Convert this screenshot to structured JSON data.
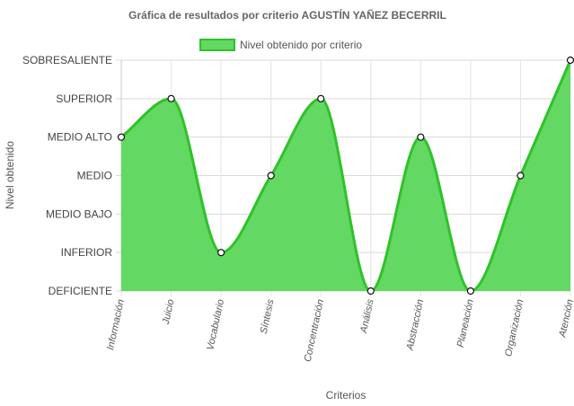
{
  "chart_data": {
    "type": "area",
    "title": "Gráfica de resultados por criterio AGUSTÍN YAÑEZ BECERRIL",
    "xlabel": "Criterios",
    "ylabel": "Nivel obtenido",
    "levels": [
      "DEFICIENTE",
      "INFERIOR",
      "MEDIO BAJO",
      "MEDIO",
      "MEDIO ALTO",
      "SUPERIOR",
      "SOBRESALIENTE"
    ],
    "categories": [
      "Información",
      "Juicio",
      "Vocabulario",
      "Síntesis",
      "Concentración",
      "Análisis",
      "Abstracción",
      "Planeación",
      "Organización",
      "Atención"
    ],
    "series": [
      {
        "name": "Nivel obtenido por criterio",
        "values": [
          4,
          5,
          1,
          3,
          5,
          0,
          4,
          0,
          3,
          6
        ],
        "fill": "#63d862",
        "stroke": "#2fc22a"
      }
    ],
    "ylim": [
      0,
      6
    ],
    "legend_position": "top",
    "grid": true
  }
}
